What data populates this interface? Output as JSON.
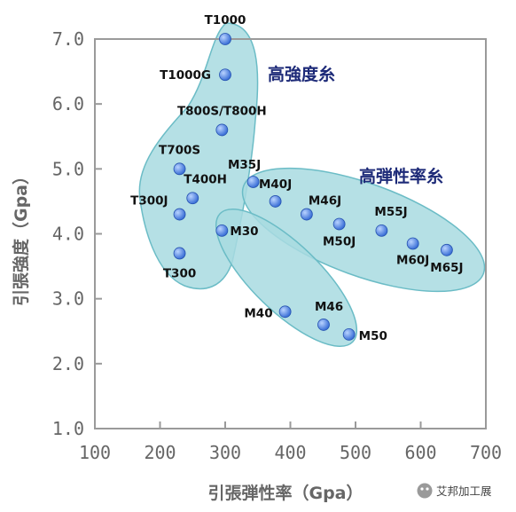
{
  "chart_data": {
    "type": "scatter",
    "title": "",
    "xlabel": "引張弾性率（Gpa）",
    "ylabel": "引張強度（Gpa）",
    "xlim": [
      100,
      700
    ],
    "ylim": [
      1.0,
      7.0
    ],
    "x_ticks": [
      "100",
      "200",
      "300",
      "400",
      "500",
      "600",
      "700"
    ],
    "y_ticks": [
      "1.0",
      "2.0",
      "3.0",
      "4.0",
      "5.0",
      "6.0",
      "7.0"
    ],
    "grid": false,
    "point_color": "#3a6fd6",
    "region_fill": "#a8dbe0",
    "region_stroke": "#6bbcc6",
    "group_label_color": "#1d2a78",
    "points": [
      {
        "label": "T1000",
        "x": 300,
        "y": 7.0
      },
      {
        "label": "T1000G",
        "x": 300,
        "y": 6.45
      },
      {
        "label": "T800S/T800H",
        "x": 295,
        "y": 5.6
      },
      {
        "label": "T700S",
        "x": 230,
        "y": 5.0
      },
      {
        "label": "T400H",
        "x": 250,
        "y": 4.55
      },
      {
        "label": "T300J",
        "x": 230,
        "y": 4.3
      },
      {
        "label": "T300",
        "x": 230,
        "y": 3.7
      },
      {
        "label": "M30",
        "x": 295,
        "y": 4.05
      },
      {
        "label": "M35J",
        "x": 343,
        "y": 4.8
      },
      {
        "label": "M40J",
        "x": 377,
        "y": 4.5
      },
      {
        "label": "M46J",
        "x": 425,
        "y": 4.3
      },
      {
        "label": "M50J",
        "x": 475,
        "y": 4.15
      },
      {
        "label": "M55J",
        "x": 540,
        "y": 4.05
      },
      {
        "label": "M60J",
        "x": 588,
        "y": 3.85
      },
      {
        "label": "M65J",
        "x": 640,
        "y": 3.75
      },
      {
        "label": "M40",
        "x": 392,
        "y": 2.8
      },
      {
        "label": "M46",
        "x": 451,
        "y": 2.6
      },
      {
        "label": "M50",
        "x": 490,
        "y": 2.45
      }
    ],
    "annotations": [
      "高強度糸",
      "高弾性率糸"
    ]
  },
  "watermark": {
    "text": "艾邦加工展",
    "icon": "wechat-icon"
  }
}
